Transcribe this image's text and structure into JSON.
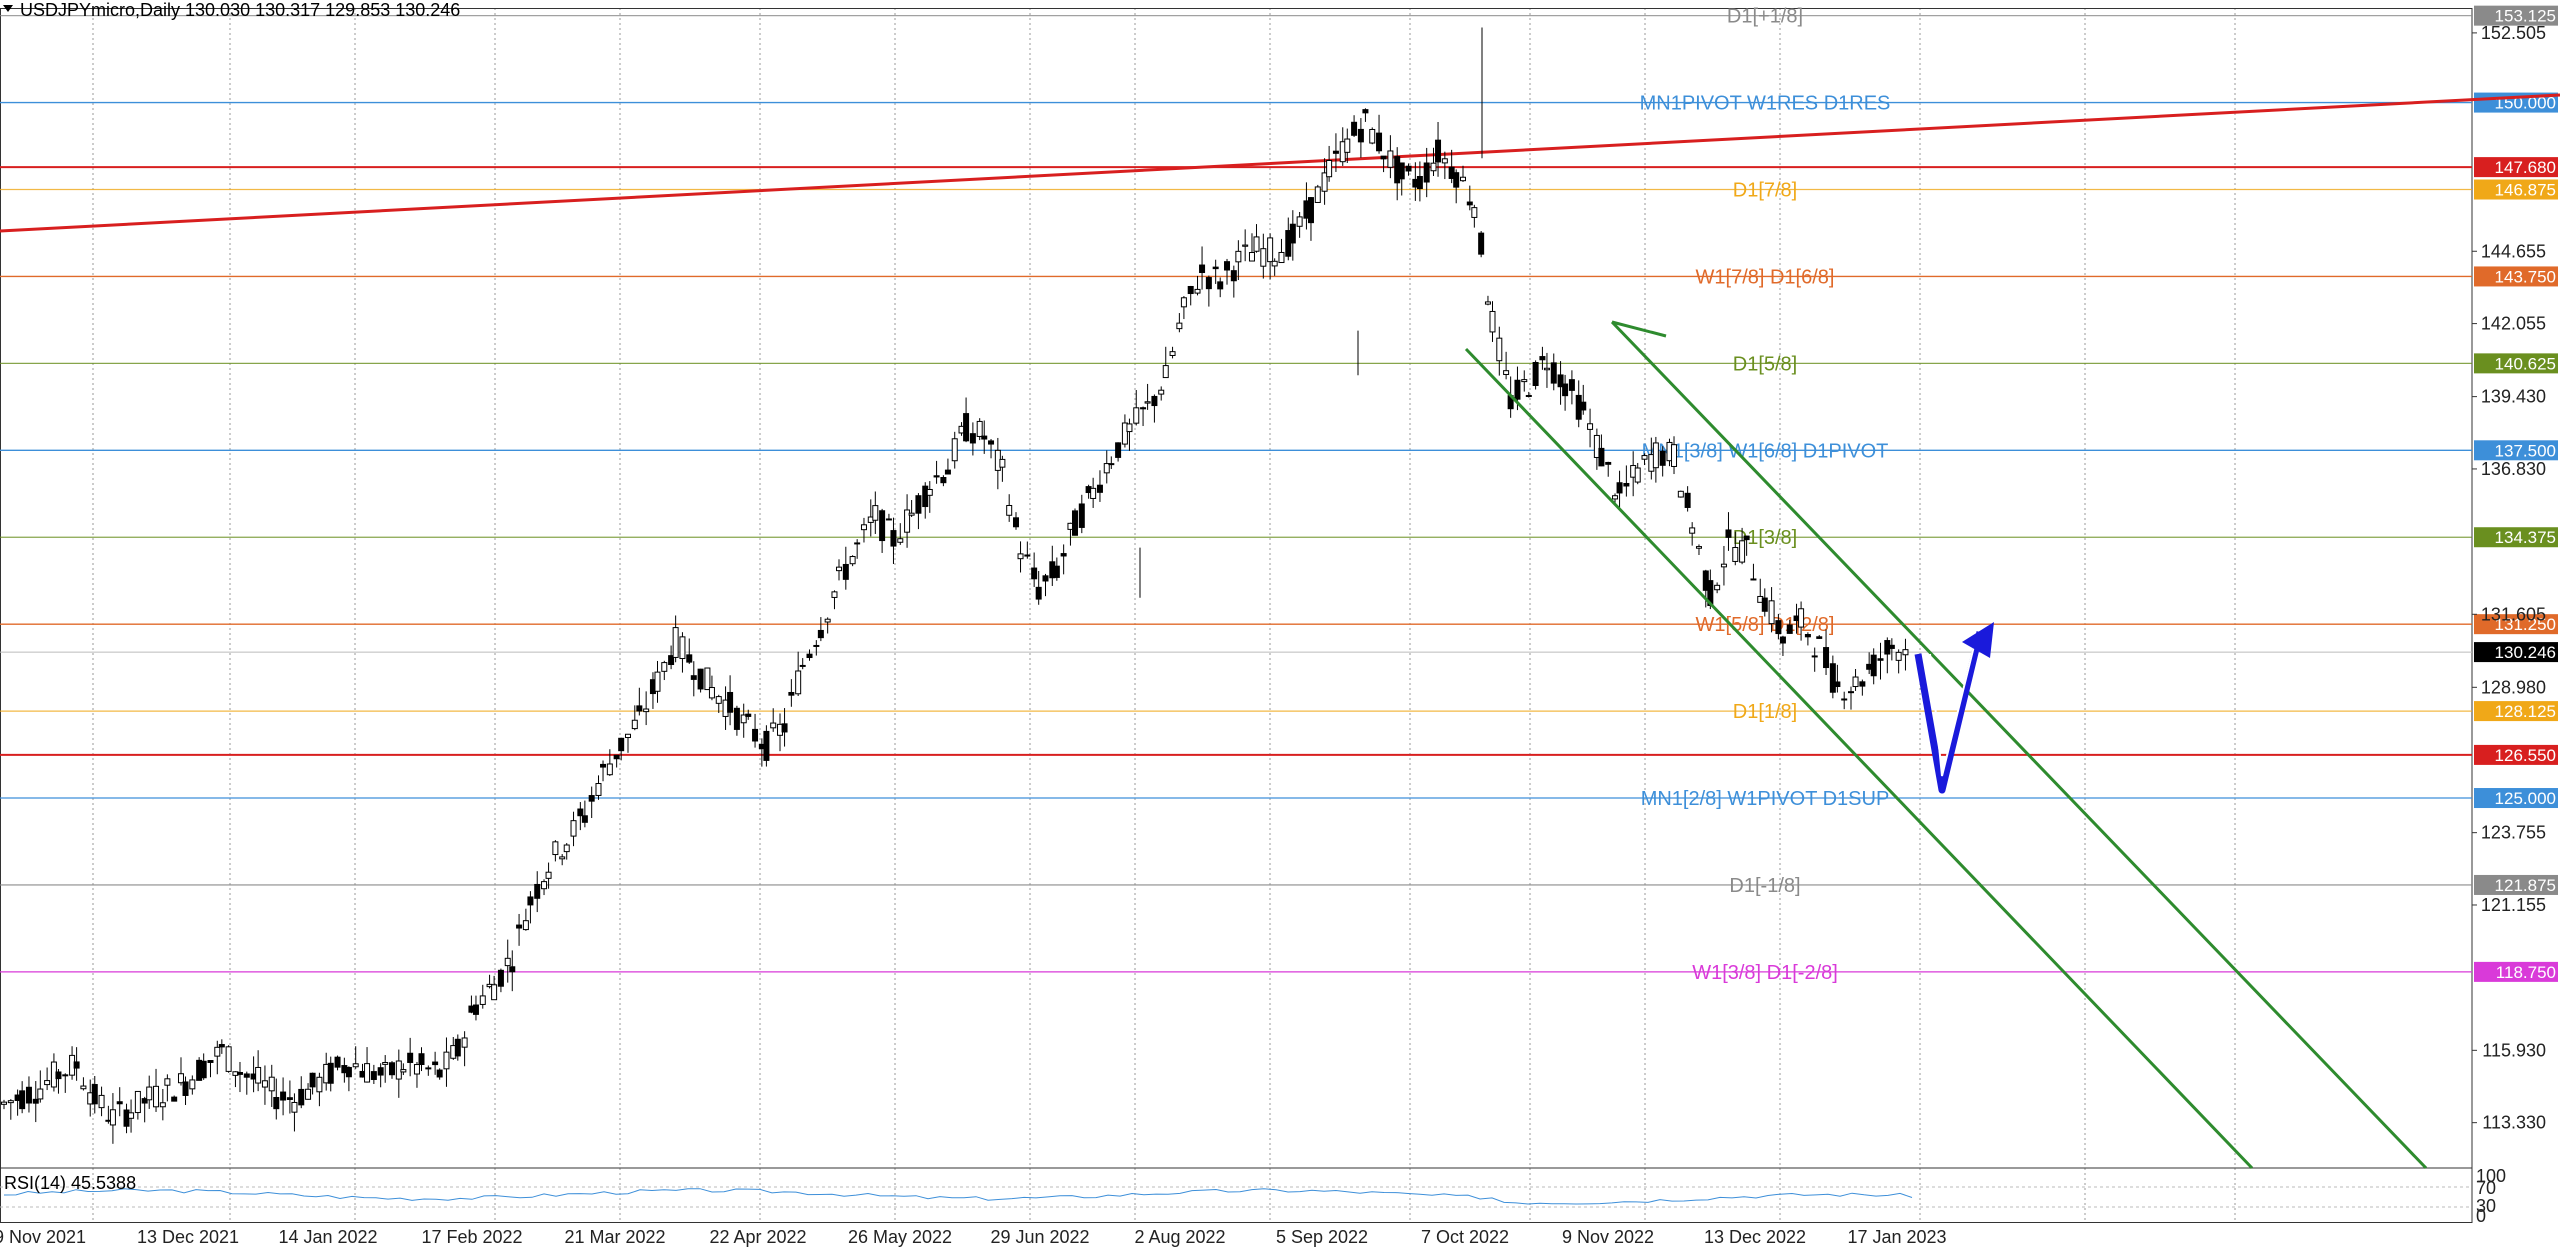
{
  "header": {
    "symbol_line": "USDJPYmicro,Daily  130.030 130.317 129.853 130.246"
  },
  "rsi": {
    "label": "RSI(14) 45.5388",
    "ticks": [
      "100",
      "70",
      "30",
      "0"
    ]
  },
  "colors": {
    "grid": "#9a9a9a",
    "candle": "#000000",
    "red_line": "#d81f1f",
    "blue_level": "#3d8fd9",
    "orange_level": "#e06a2a",
    "gold_level": "#f0a818",
    "olive_level": "#6a8f1f",
    "gray_level": "#8a8a8a",
    "magenta_level": "#d93ad9",
    "channel": "#2e8b2e",
    "arrow": "#1a1adb",
    "rsi_line": "#3d8fd9"
  },
  "chart_data": {
    "type": "candlestick",
    "symbol": "USDJPYmicro",
    "timeframe": "Daily",
    "last": {
      "open": 130.03,
      "high": 130.317,
      "low": 129.853,
      "close": 130.246
    },
    "ylim": [
      111.7,
      153.4
    ],
    "x_ticks": [
      "9 Nov 2021",
      "13 Dec 2021",
      "14 Jan 2022",
      "17 Feb 2022",
      "21 Mar 2022",
      "22 Apr 2022",
      "26 May 2022",
      "29 Jun 2022",
      "2 Aug 2022",
      "5 Sep 2022",
      "7 Oct 2022",
      "9 Nov 2022",
      "13 Dec 2022",
      "17 Jan 2023"
    ],
    "y_ticks": [
      "152.505",
      "144.655",
      "142.055",
      "139.430",
      "136.830",
      "131.605",
      "128.980",
      "123.755",
      "121.155",
      "115.930",
      "113.330"
    ],
    "levels": [
      {
        "price": 153.125,
        "label": "D1[+1/8]",
        "color": "#8a8a8a",
        "tag": "153.125"
      },
      {
        "price": 150.0,
        "label": "MN1PIVOT W1RES D1RES",
        "color": "#3d8fd9",
        "tag": "150.000"
      },
      {
        "price": 147.68,
        "label": "",
        "color": "#d81f1f",
        "tag": "147.680"
      },
      {
        "price": 146.875,
        "label": "D1[7/8]",
        "color": "#f0a818",
        "tag": "146.875"
      },
      {
        "price": 143.75,
        "label": "W1[7/8] D1[6/8]",
        "color": "#e06a2a",
        "tag": "143.750"
      },
      {
        "price": 140.625,
        "label": "D1[5/8]",
        "color": "#6a8f1f",
        "tag": "140.625"
      },
      {
        "price": 137.5,
        "label": "MN1[3/8] W1[6/8] D1PIVOT",
        "color": "#3d8fd9",
        "tag": "137.500"
      },
      {
        "price": 134.375,
        "label": "D1[3/8]",
        "color": "#6a8f1f",
        "tag": "134.375"
      },
      {
        "price": 131.25,
        "label": "W1[5/8] D1[2/8]",
        "color": "#e06a2a",
        "tag": "131.250"
      },
      {
        "price": 130.246,
        "label": "",
        "color": "#000000",
        "tag": "130.246"
      },
      {
        "price": 128.125,
        "label": "D1[1/8]",
        "color": "#f0a818",
        "tag": "128.125"
      },
      {
        "price": 126.55,
        "label": "",
        "color": "#d81f1f",
        "tag": "126.550"
      },
      {
        "price": 125.0,
        "label": "MN1[2/8] W1PIVOT D1SUP",
        "color": "#3d8fd9",
        "tag": "125.000"
      },
      {
        "price": 121.875,
        "label": "D1[-1/8]",
        "color": "#8a8a8a",
        "tag": "121.875"
      },
      {
        "price": 118.75,
        "label": "W1[3/8] D1[-2/8]",
        "color": "#d93ad9",
        "tag": "118.750"
      }
    ],
    "series": [
      {
        "name": "USDJPYmicro",
        "close_path": [
          [
            0,
            114.0
          ],
          [
            8,
            114.3
          ],
          [
            16,
            114.6
          ],
          [
            24,
            115.1
          ],
          [
            32,
            115.4
          ],
          [
            40,
            114.2
          ],
          [
            48,
            113.5
          ],
          [
            56,
            113.8
          ],
          [
            64,
            114.2
          ],
          [
            72,
            114.5
          ],
          [
            80,
            114.8
          ],
          [
            88,
            115.4
          ],
          [
            96,
            115.9
          ],
          [
            104,
            115.2
          ],
          [
            112,
            114.8
          ],
          [
            120,
            114.3
          ],
          [
            128,
            114.2
          ],
          [
            136,
            114.6
          ],
          [
            144,
            115.1
          ],
          [
            152,
            115.5
          ],
          [
            160,
            115.2
          ],
          [
            168,
            115.0
          ],
          [
            176,
            115.4
          ],
          [
            184,
            115.3
          ],
          [
            192,
            115.1
          ],
          [
            200,
            115.9
          ],
          [
            208,
            117.6
          ],
          [
            216,
            118.3
          ],
          [
            224,
            119.3
          ],
          [
            232,
            121.3
          ],
          [
            240,
            122.6
          ],
          [
            248,
            123.5
          ],
          [
            256,
            124.4
          ],
          [
            264,
            125.9
          ],
          [
            272,
            126.9
          ],
          [
            280,
            127.8
          ],
          [
            288,
            129.2
          ],
          [
            296,
            130.6
          ],
          [
            304,
            129.8
          ],
          [
            312,
            128.9
          ],
          [
            320,
            128.3
          ],
          [
            328,
            127.5
          ],
          [
            336,
            126.9
          ],
          [
            344,
            127.6
          ],
          [
            352,
            129.8
          ],
          [
            360,
            131.2
          ],
          [
            368,
            132.8
          ],
          [
            376,
            134.0
          ],
          [
            384,
            135.1
          ],
          [
            392,
            134.3
          ],
          [
            400,
            135.2
          ],
          [
            408,
            136.3
          ],
          [
            416,
            136.9
          ],
          [
            424,
            138.3
          ],
          [
            432,
            138.0
          ],
          [
            440,
            136.7
          ],
          [
            448,
            134.0
          ],
          [
            456,
            132.5
          ],
          [
            464,
            133.2
          ],
          [
            472,
            134.8
          ],
          [
            480,
            136.0
          ],
          [
            488,
            137.3
          ],
          [
            496,
            138.2
          ],
          [
            504,
            139.0
          ],
          [
            512,
            140.1
          ],
          [
            520,
            142.5
          ],
          [
            528,
            143.9
          ],
          [
            536,
            143.6
          ],
          [
            544,
            144.3
          ],
          [
            552,
            144.7
          ],
          [
            560,
            144.6
          ],
          [
            568,
            145.1
          ],
          [
            576,
            146.2
          ],
          [
            584,
            147.5
          ],
          [
            592,
            148.6
          ],
          [
            600,
            149.3
          ],
          [
            608,
            148.3
          ],
          [
            616,
            147.3
          ],
          [
            624,
            147.2
          ],
          [
            632,
            148.2
          ],
          [
            640,
            147.5
          ],
          [
            648,
            146.4
          ],
          [
            656,
            142.1
          ],
          [
            664,
            139.3
          ],
          [
            672,
            139.9
          ],
          [
            680,
            140.8
          ],
          [
            688,
            139.9
          ],
          [
            696,
            138.9
          ],
          [
            704,
            137.3
          ],
          [
            712,
            135.8
          ],
          [
            720,
            136.7
          ],
          [
            728,
            137.4
          ],
          [
            736,
            137.3
          ],
          [
            744,
            134.8
          ],
          [
            752,
            132.3
          ],
          [
            760,
            134.1
          ],
          [
            768,
            133.9
          ],
          [
            776,
            132.1
          ],
          [
            784,
            130.8
          ],
          [
            792,
            131.3
          ],
          [
            800,
            130.4
          ],
          [
            808,
            129.0
          ],
          [
            816,
            129.1
          ],
          [
            824,
            129.8
          ],
          [
            832,
            130.5
          ],
          [
            840,
            130.246
          ]
        ]
      }
    ],
    "forecast_arrow": "down to 125.000 then up to ~131.2"
  }
}
